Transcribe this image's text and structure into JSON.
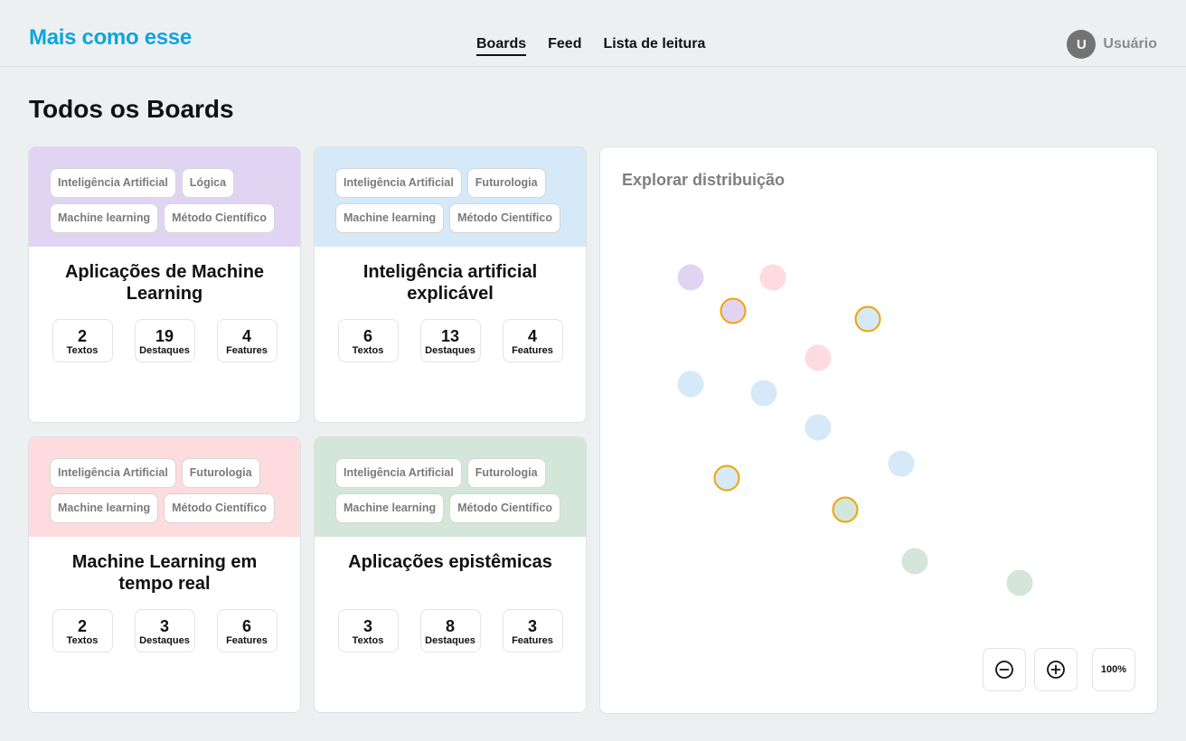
{
  "app": {
    "logo": "Mais como esse"
  },
  "nav": [
    {
      "label": "Boards",
      "active": true
    },
    {
      "label": "Feed",
      "active": false
    },
    {
      "label": "Lista de leitura",
      "active": false
    }
  ],
  "user": {
    "initial": "U",
    "name": "Usuário"
  },
  "page": {
    "title": "Todos os Boards"
  },
  "boards": [
    {
      "color": "#e1d4f3",
      "tags": [
        "Inteligência Artificial",
        "Lógica",
        "Machine learning",
        "Método Científico"
      ],
      "title": "Aplicações de Machine Learning",
      "stats": {
        "textos": "2",
        "destaques": "19",
        "features": "4"
      }
    },
    {
      "color": "#d5e9f8",
      "tags": [
        "Inteligência Artificial",
        "Futurologia",
        "Machine learning",
        "Método Científico"
      ],
      "title": "Inteligência artificial explicável",
      "stats": {
        "textos": "6",
        "destaques": "13",
        "features": "4"
      }
    },
    {
      "color": "#fddbde",
      "tags": [
        "Inteligência Artificial",
        "Futurologia",
        "Machine learning",
        "Método Científico"
      ],
      "title": "Machine Learning em tempo real",
      "stats": {
        "textos": "2",
        "destaques": "3",
        "features": "6"
      }
    },
    {
      "color": "#d3e6d9",
      "tags": [
        "Inteligência Artificial",
        "Futurologia",
        "Machine learning",
        "Método Científico"
      ],
      "title": "Aplicações epistêmicas",
      "stats": {
        "textos": "3",
        "destaques": "8",
        "features": "3"
      }
    }
  ],
  "stat_labels": {
    "textos": "Textos",
    "destaques": "Destaques",
    "features": "Features"
  },
  "explore": {
    "title": "Explorar distribuição",
    "highlight_color": "#f0a500",
    "points": [
      {
        "board": 0,
        "highlighted": false
      },
      {
        "board": 2,
        "highlighted": false
      },
      {
        "board": 0,
        "highlighted": true
      },
      {
        "board": 1,
        "highlighted": true
      },
      {
        "board": 2,
        "highlighted": false
      },
      {
        "board": 1,
        "highlighted": false
      },
      {
        "board": 1,
        "highlighted": false
      },
      {
        "board": 1,
        "highlighted": false
      },
      {
        "board": 1,
        "highlighted": false
      },
      {
        "board": 1,
        "highlighted": true
      },
      {
        "board": 3,
        "highlighted": true
      },
      {
        "board": 3,
        "highlighted": false
      },
      {
        "board": 3,
        "highlighted": false
      }
    ],
    "zoom": {
      "out_icon": "zoom-out-icon",
      "in_icon": "zoom-in-icon",
      "level": "100%"
    }
  }
}
